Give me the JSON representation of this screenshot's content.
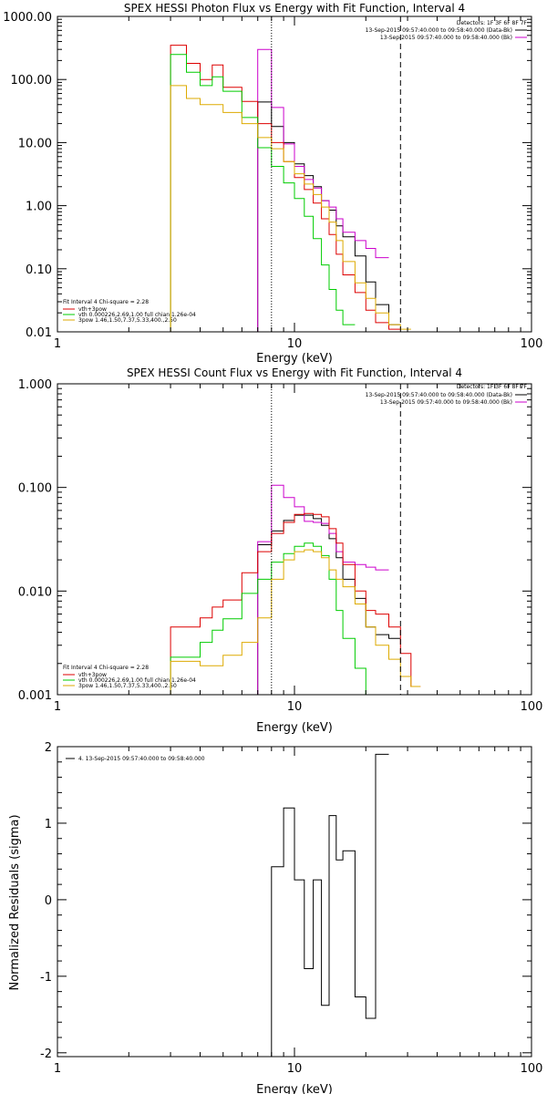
{
  "chart_data": [
    {
      "type": "line",
      "title": "SPEX HESSI Photon Flux vs Energy with Fit Function, Interval 4",
      "xlabel": "Energy (keV)",
      "ylabel": "",
      "xscale": "log",
      "yscale": "log",
      "xlim": [
        1,
        100
      ],
      "ylim": [
        0.01,
        1000
      ],
      "xticks": [
        "1",
        "10",
        "100"
      ],
      "yticks": [
        "0.01",
        "0.10",
        "1.00",
        "10.00",
        "100.00",
        "1000.00"
      ],
      "edges": [
        3,
        3.5,
        4,
        4.5,
        5,
        6,
        7,
        8,
        9,
        10,
        11,
        12,
        13,
        14,
        15,
        16,
        18,
        20,
        22,
        25,
        28,
        31,
        34
      ],
      "vlines": [
        {
          "x": 8,
          "style": "dotted",
          "color": "#000000"
        },
        {
          "x": 28,
          "style": "dashed",
          "color": "#000000"
        }
      ],
      "header_lines": [
        {
          "text": "Detectors: 1F 3F 6F 8F 7F",
          "color": "#000000"
        },
        {
          "text": "13-Sep-2015 09:57:40.000 to 09:58:40.000 (Data-Bk)",
          "color": "#000000"
        },
        {
          "text": "13-Sep-2015 09:57:40.000 to 09:58:40.000 (Bk)",
          "color": "#cc00cc"
        }
      ],
      "legend_placement": "bottom-left",
      "legend": [
        {
          "text": "Fit Interval 4   Chi-square = 2.28",
          "color": "#000000"
        },
        {
          "text": "vth+3pow",
          "color": "#dd0000"
        },
        {
          "text": "vth 0.000226,2.69,1.00  full chian 1.26e-04",
          "color": "#00cc00"
        },
        {
          "text": "3pow 1.46,1.50,7.37,5.33,400.,2.50",
          "color": "#ddaa00"
        }
      ],
      "series": [
        {
          "color": "#000000",
          "start": 6,
          "values": [
            44,
            18,
            10,
            4.6,
            3.0,
            2.0,
            1.2,
            0.85,
            0.48,
            0.32,
            0.16,
            0.062,
            0.027,
            0.013
          ]
        },
        {
          "color": "#cc00cc",
          "start": 6,
          "values": [
            300,
            36,
            9.5,
            4.2,
            2.6,
            1.9,
            1.2,
            0.95,
            0.62,
            0.38,
            0.28,
            0.21,
            0.15
          ]
        },
        {
          "color": "#dd0000",
          "start": 0,
          "values": [
            350,
            180,
            100,
            170,
            75,
            45,
            20,
            10,
            5.0,
            2.8,
            1.8,
            1.1,
            0.62,
            0.35,
            0.17,
            0.08,
            0.042,
            0.022,
            0.014,
            0.011
          ]
        },
        {
          "color": "#00cc00",
          "start": 0,
          "values": [
            250,
            130,
            80,
            110,
            65,
            25,
            8.3,
            4.2,
            2.3,
            1.3,
            0.68,
            0.3,
            0.115,
            0.047,
            0.022,
            0.013
          ]
        },
        {
          "color": "#ddaa00",
          "start": 0,
          "values": [
            80,
            50,
            40,
            40,
            30,
            20,
            12,
            8,
            5,
            3.2,
            2.2,
            1.5,
            0.95,
            0.55,
            0.28,
            0.13,
            0.06,
            0.034,
            0.02,
            0.013,
            0.011
          ]
        }
      ]
    },
    {
      "type": "line",
      "title": "SPEX HESSI Count Flux vs Energy with Fit Function, Interval 4",
      "xlabel": "Energy (keV)",
      "ylabel": "",
      "xscale": "log",
      "yscale": "log",
      "xlim": [
        1,
        100
      ],
      "ylim": [
        0.001,
        1
      ],
      "xticks": [
        "1",
        "10",
        "100"
      ],
      "yticks": [
        "0.001",
        "0.010",
        "0.100",
        "1.000"
      ],
      "edges": [
        3,
        3.5,
        4,
        4.5,
        5,
        6,
        7,
        8,
        9,
        10,
        11,
        12,
        13,
        14,
        15,
        16,
        18,
        20,
        22,
        25,
        28,
        31,
        34
      ],
      "vlines": [
        {
          "x": 8,
          "style": "dotted",
          "color": "#000000"
        },
        {
          "x": 28,
          "style": "dashed",
          "color": "#000000"
        }
      ],
      "header_lines": [
        {
          "text": "Detectors: 1F 3F 6F 8F 7F",
          "color": "#000000"
        },
        {
          "text": "13-Sep-2015 09:57:40.000 to 09:58:40.000 (Data-Bk)",
          "color": "#000000"
        },
        {
          "text": "13-Sep-2015 09:57:40.000 to 09:58:40.000 (Bk)",
          "color": "#cc00cc"
        }
      ],
      "legend_placement": "bottom-left",
      "legend": [
        {
          "text": "Fit Interval 4   Chi-square = 2.28",
          "color": "#000000"
        },
        {
          "text": "vth+3pow",
          "color": "#dd0000"
        },
        {
          "text": "vth 0.000226,2.69,1.00  full chian 1.26e-04",
          "color": "#00cc00"
        },
        {
          "text": "3pow 1.46,1.50,7.37,5.33,400.,2.50",
          "color": "#ddaa00"
        }
      ],
      "series": [
        {
          "color": "#000000",
          "start": 6,
          "values": [
            0.028,
            0.038,
            0.048,
            0.054,
            0.054,
            0.05,
            0.043,
            0.032,
            0.021,
            0.013,
            0.0085,
            0.0045,
            0.0038,
            0.0035
          ]
        },
        {
          "color": "#cc00cc",
          "start": 6,
          "values": [
            0.03,
            0.105,
            0.08,
            0.065,
            0.047,
            0.046,
            0.045,
            0.036,
            0.024,
            0.019,
            0.018,
            0.017,
            0.016
          ]
        },
        {
          "color": "#dd0000",
          "start": 0,
          "values": [
            0.0045,
            0.0045,
            0.0055,
            0.007,
            0.0082,
            0.015,
            0.024,
            0.036,
            0.046,
            0.055,
            0.056,
            0.055,
            0.052,
            0.04,
            0.029,
            0.018,
            0.01,
            0.0065,
            0.006,
            0.0045,
            0.0025,
            0.0012
          ]
        },
        {
          "color": "#00cc00",
          "start": 0,
          "values": [
            0.0023,
            0.0023,
            0.0032,
            0.0042,
            0.0054,
            0.0095,
            0.013,
            0.019,
            0.023,
            0.027,
            0.029,
            0.027,
            0.022,
            0.013,
            0.0065,
            0.0035,
            0.0018,
            0.001
          ]
        },
        {
          "color": "#ddaa00",
          "start": 0,
          "values": [
            0.0021,
            0.0021,
            0.0019,
            0.0019,
            0.0024,
            0.0032,
            0.0055,
            0.013,
            0.02,
            0.024,
            0.025,
            0.024,
            0.021,
            0.016,
            0.013,
            0.011,
            0.0075,
            0.0045,
            0.003,
            0.0022,
            0.0015,
            0.0012
          ]
        }
      ]
    },
    {
      "type": "line",
      "title": "",
      "xlabel": "Energy (keV)",
      "ylabel": "Normalized Residuals (sigma)",
      "xscale": "log",
      "yscale": "linear",
      "xlim": [
        1,
        100
      ],
      "ylim": [
        -2.05,
        2
      ],
      "xticks": [
        "1",
        "10",
        "100"
      ],
      "yticks": [
        "-2",
        "-1",
        "0",
        "1",
        "2"
      ],
      "edges": [
        8,
        9,
        10,
        11,
        12,
        13,
        14,
        15,
        16,
        18,
        20,
        22,
        25,
        28
      ],
      "legend_placement": "top-left",
      "legend": [
        {
          "text": "4. 13-Sep-2015 09:57:40.000 to 09:58:40.000",
          "color": "#000000"
        }
      ],
      "series": [
        {
          "color": "#000000",
          "start": 0,
          "values": [
            0.43,
            1.2,
            0.26,
            -0.9,
            0.26,
            -1.38,
            1.1,
            0.52,
            0.64,
            -1.27,
            -1.55,
            1.9
          ]
        }
      ]
    }
  ]
}
